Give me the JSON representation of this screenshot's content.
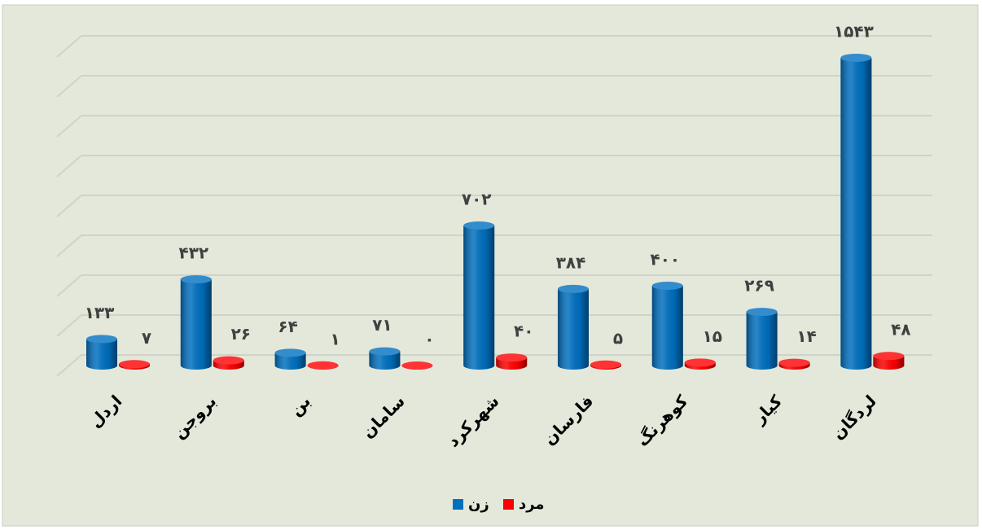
{
  "chart_data": {
    "type": "bar3d",
    "categories": [
      "اردل",
      "بروجن",
      "بن",
      "سامان",
      "شهرکرد",
      "فارسان",
      "کوهرنگ",
      "کیار",
      "لردگان"
    ],
    "series": [
      {
        "name": "زن",
        "color": "#0070c0",
        "values": [
          133,
          432,
          64,
          71,
          702,
          384,
          400,
          269,
          1543
        ],
        "value_labels": [
          "۱۳۳",
          "۴۳۲",
          "۶۴",
          "۷۱",
          "۷۰۲",
          "۳۸۴",
          "۴۰۰",
          "۲۶۹",
          "۱۵۴۳"
        ]
      },
      {
        "name": "مرد",
        "color": "#ff0000",
        "values": [
          7,
          26,
          1,
          0,
          40,
          5,
          15,
          14,
          48
        ],
        "value_labels": [
          "۷",
          "۲۶",
          "۱",
          "۰",
          "۴۰",
          "۵",
          "۱۵",
          "۱۴",
          "۴۸"
        ]
      }
    ],
    "ylim": [
      0,
      1600
    ],
    "yticks": [
      0,
      200,
      400,
      600,
      800,
      1000,
      1200,
      1400,
      1600
    ],
    "grid": true
  }
}
